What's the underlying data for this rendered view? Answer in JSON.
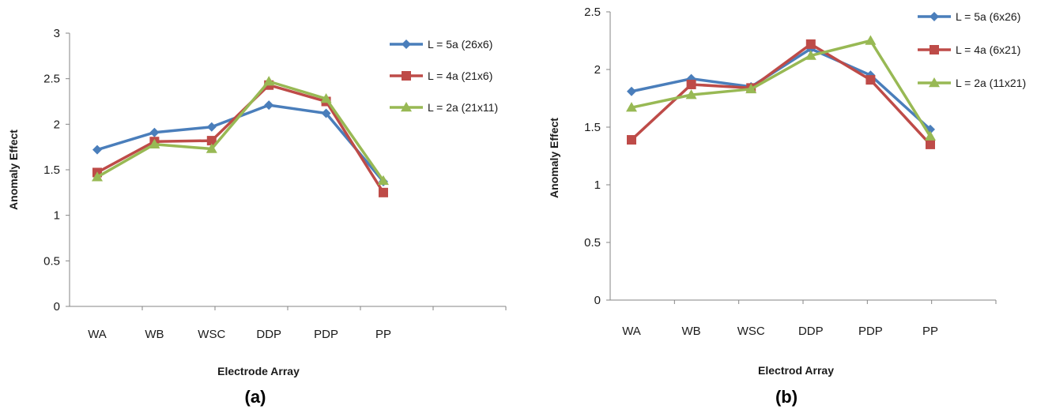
{
  "chart_data": [
    {
      "type": "line",
      "panel_label": "(a)",
      "xlabel": "Electrode Array",
      "ylabel": "Anomaly Effect",
      "categories": [
        "WA",
        "WB",
        "WSC",
        "DDP",
        "PDP",
        "PP"
      ],
      "ylim": [
        0,
        3
      ],
      "yticks": [
        "0",
        "0.5",
        "1",
        "1.5",
        "2",
        "2.5",
        "3"
      ],
      "grid": false,
      "legend_position": "top-right",
      "series": [
        {
          "name": "L = 5a (26x6)",
          "color": "#4a7ebb",
          "marker": "diamond",
          "values": [
            1.72,
            1.91,
            1.97,
            2.21,
            2.12,
            1.37
          ]
        },
        {
          "name": "L = 4a (21x6)",
          "color": "#be4b48",
          "marker": "square",
          "values": [
            1.47,
            1.81,
            1.82,
            2.43,
            2.25,
            1.25
          ]
        },
        {
          "name": "L = 2a (21x11)",
          "color": "#98b954",
          "marker": "triangle",
          "values": [
            1.42,
            1.78,
            1.73,
            2.47,
            2.28,
            1.38
          ]
        }
      ]
    },
    {
      "type": "line",
      "panel_label": "(b)",
      "xlabel": "Electrod Array",
      "ylabel": "Anomaly Effect",
      "categories": [
        "WA",
        "WB",
        "WSC",
        "DDP",
        "PDP",
        "PP"
      ],
      "ylim": [
        0,
        2.5
      ],
      "yticks": [
        "0",
        "0.5",
        "1",
        "1.5",
        "2",
        "2.5"
      ],
      "grid": false,
      "legend_position": "top-right",
      "series": [
        {
          "name": "L = 5a (6x26)",
          "color": "#4a7ebb",
          "marker": "diamond",
          "values": [
            1.81,
            1.92,
            1.85,
            2.18,
            1.95,
            1.48
          ]
        },
        {
          "name": "L = 4a (6x21)",
          "color": "#be4b48",
          "marker": "square",
          "values": [
            1.39,
            1.87,
            1.84,
            2.22,
            1.91,
            1.35
          ]
        },
        {
          "name": "L = 2a (11x21)",
          "color": "#98b954",
          "marker": "triangle",
          "values": [
            1.67,
            1.78,
            1.83,
            2.12,
            2.25,
            1.42
          ]
        }
      ]
    }
  ]
}
